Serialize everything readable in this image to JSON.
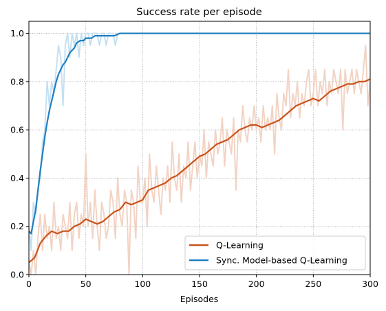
{
  "chart_data": {
    "type": "line",
    "title": "Success rate per episode",
    "xlabel": "Episodes",
    "ylabel": "",
    "xlim": [
      0,
      300
    ],
    "ylim": [
      0.0,
      1.05
    ],
    "xticks": [
      "0",
      "50",
      "100",
      "150",
      "200",
      "250",
      "300"
    ],
    "yticks": [
      "0.0",
      "0.2",
      "0.4",
      "0.6",
      "0.8",
      "1.0"
    ],
    "grid": true,
    "legend_position": "lower right",
    "series": [
      {
        "name": "Q-Learning",
        "color": "#c8531a",
        "raw_color": "#f2d3c4",
        "smoothed": {
          "x": [
            0,
            5,
            10,
            15,
            20,
            25,
            30,
            35,
            40,
            45,
            50,
            55,
            60,
            65,
            70,
            75,
            80,
            85,
            90,
            95,
            100,
            105,
            110,
            115,
            120,
            125,
            130,
            135,
            140,
            145,
            150,
            155,
            160,
            165,
            170,
            175,
            180,
            185,
            190,
            195,
            200,
            205,
            210,
            215,
            220,
            225,
            230,
            235,
            240,
            245,
            250,
            255,
            260,
            265,
            270,
            275,
            280,
            285,
            290,
            295,
            300
          ],
          "y": [
            0.05,
            0.07,
            0.13,
            0.16,
            0.18,
            0.17,
            0.18,
            0.18,
            0.2,
            0.21,
            0.23,
            0.22,
            0.21,
            0.22,
            0.24,
            0.26,
            0.27,
            0.3,
            0.29,
            0.3,
            0.31,
            0.35,
            0.36,
            0.37,
            0.38,
            0.4,
            0.41,
            0.43,
            0.45,
            0.47,
            0.49,
            0.5,
            0.52,
            0.54,
            0.55,
            0.56,
            0.58,
            0.6,
            0.61,
            0.62,
            0.62,
            0.61,
            0.62,
            0.63,
            0.64,
            0.66,
            0.68,
            0.7,
            0.71,
            0.72,
            0.73,
            0.72,
            0.74,
            0.76,
            0.77,
            0.78,
            0.79,
            0.79,
            0.8,
            0.8,
            0.81
          ]
        },
        "raw": {
          "x": [
            0,
            2,
            4,
            6,
            8,
            10,
            12,
            14,
            16,
            18,
            20,
            22,
            24,
            26,
            28,
            30,
            32,
            34,
            36,
            38,
            40,
            42,
            44,
            46,
            48,
            50,
            52,
            54,
            56,
            58,
            60,
            62,
            64,
            66,
            68,
            70,
            72,
            74,
            76,
            78,
            80,
            82,
            84,
            86,
            88,
            90,
            92,
            94,
            96,
            98,
            100,
            102,
            104,
            106,
            108,
            110,
            112,
            114,
            116,
            118,
            120,
            122,
            124,
            126,
            128,
            130,
            132,
            134,
            136,
            138,
            140,
            142,
            144,
            146,
            148,
            150,
            152,
            154,
            156,
            158,
            160,
            162,
            164,
            166,
            168,
            170,
            172,
            174,
            176,
            178,
            180,
            182,
            184,
            186,
            188,
            190,
            192,
            194,
            196,
            198,
            200,
            202,
            204,
            206,
            208,
            210,
            212,
            214,
            216,
            218,
            220,
            222,
            224,
            226,
            228,
            230,
            232,
            234,
            236,
            238,
            240,
            242,
            244,
            246,
            248,
            250,
            252,
            254,
            256,
            258,
            260,
            262,
            264,
            266,
            268,
            270,
            272,
            274,
            276,
            278,
            280,
            282,
            284,
            286,
            288,
            290,
            292,
            294,
            296,
            298,
            300
          ],
          "y": [
            0.05,
            0.0,
            0.1,
            0.0,
            0.15,
            0.25,
            0.1,
            0.25,
            0.15,
            0.2,
            0.1,
            0.3,
            0.15,
            0.2,
            0.1,
            0.25,
            0.2,
            0.15,
            0.3,
            0.1,
            0.25,
            0.3,
            0.15,
            0.25,
            0.2,
            0.5,
            0.2,
            0.3,
            0.15,
            0.35,
            0.2,
            0.1,
            0.3,
            0.25,
            0.15,
            0.2,
            0.35,
            0.3,
            0.15,
            0.4,
            0.25,
            0.2,
            0.35,
            0.3,
            0.0,
            0.35,
            0.3,
            0.15,
            0.45,
            0.3,
            0.3,
            0.4,
            0.2,
            0.5,
            0.35,
            0.3,
            0.45,
            0.35,
            0.25,
            0.4,
            0.35,
            0.45,
            0.3,
            0.55,
            0.4,
            0.35,
            0.5,
            0.3,
            0.45,
            0.4,
            0.55,
            0.35,
            0.45,
            0.55,
            0.4,
            0.5,
            0.45,
            0.6,
            0.4,
            0.55,
            0.5,
            0.45,
            0.6,
            0.5,
            0.55,
            0.65,
            0.45,
            0.6,
            0.55,
            0.5,
            0.65,
            0.35,
            0.6,
            0.55,
            0.7,
            0.6,
            0.55,
            0.65,
            0.6,
            0.7,
            0.6,
            0.65,
            0.55,
            0.7,
            0.6,
            0.65,
            0.6,
            0.7,
            0.5,
            0.75,
            0.65,
            0.6,
            0.75,
            0.7,
            0.85,
            0.65,
            0.75,
            0.7,
            0.8,
            0.65,
            0.75,
            0.7,
            0.8,
            0.85,
            0.7,
            0.75,
            0.85,
            0.7,
            0.8,
            0.75,
            0.85,
            0.7,
            0.8,
            0.75,
            0.85,
            0.8,
            0.75,
            0.85,
            0.6,
            0.85,
            0.75,
            0.8,
            0.85,
            0.75,
            0.85,
            0.8,
            0.75,
            0.85,
            0.95,
            0.7,
            0.8
          ]
        }
      },
      {
        "name": "Sync. Model-based Q-Learning",
        "color": "#1f7fc0",
        "raw_color": "#c5e0f2",
        "smoothed": {
          "x": [
            0,
            2,
            4,
            6,
            8,
            10,
            12,
            14,
            16,
            18,
            20,
            22,
            24,
            26,
            28,
            30,
            32,
            34,
            36,
            38,
            40,
            42,
            45,
            48,
            50,
            52,
            55,
            58,
            60,
            65,
            70,
            75,
            80,
            85,
            90,
            95,
            100,
            150,
            200,
            250,
            300
          ],
          "y": [
            0.18,
            0.17,
            0.22,
            0.27,
            0.35,
            0.43,
            0.5,
            0.57,
            0.63,
            0.68,
            0.72,
            0.76,
            0.8,
            0.83,
            0.85,
            0.87,
            0.88,
            0.9,
            0.92,
            0.93,
            0.94,
            0.96,
            0.97,
            0.97,
            0.98,
            0.98,
            0.98,
            0.99,
            0.99,
            0.99,
            0.99,
            0.99,
            1.0,
            1.0,
            1.0,
            1.0,
            1.0,
            1.0,
            1.0,
            1.0,
            1.0
          ]
        },
        "raw": {
          "x": [
            0,
            2,
            4,
            6,
            8,
            10,
            12,
            14,
            16,
            18,
            20,
            22,
            24,
            26,
            28,
            30,
            32,
            34,
            36,
            38,
            40,
            42,
            44,
            46,
            48,
            50,
            52,
            54,
            56,
            58,
            60,
            62,
            64,
            66,
            68,
            70,
            72,
            74,
            76,
            78,
            80,
            82,
            84,
            86,
            88,
            90,
            100,
            150,
            200,
            250,
            300
          ],
          "y": [
            0.2,
            0.1,
            0.3,
            0.25,
            0.35,
            0.4,
            0.55,
            0.6,
            0.8,
            0.7,
            0.8,
            0.75,
            0.85,
            0.95,
            0.9,
            0.7,
            0.95,
            1.0,
            0.9,
            1.0,
            0.95,
            1.0,
            0.9,
            1.0,
            0.95,
            1.0,
            1.0,
            0.95,
            1.0,
            1.0,
            1.0,
            0.95,
            1.0,
            1.0,
            0.95,
            1.0,
            1.0,
            1.0,
            0.95,
            1.0,
            1.0,
            1.0,
            1.0,
            1.0,
            1.0,
            1.0,
            1.0,
            1.0,
            1.0,
            1.0,
            1.0
          ]
        }
      }
    ]
  }
}
